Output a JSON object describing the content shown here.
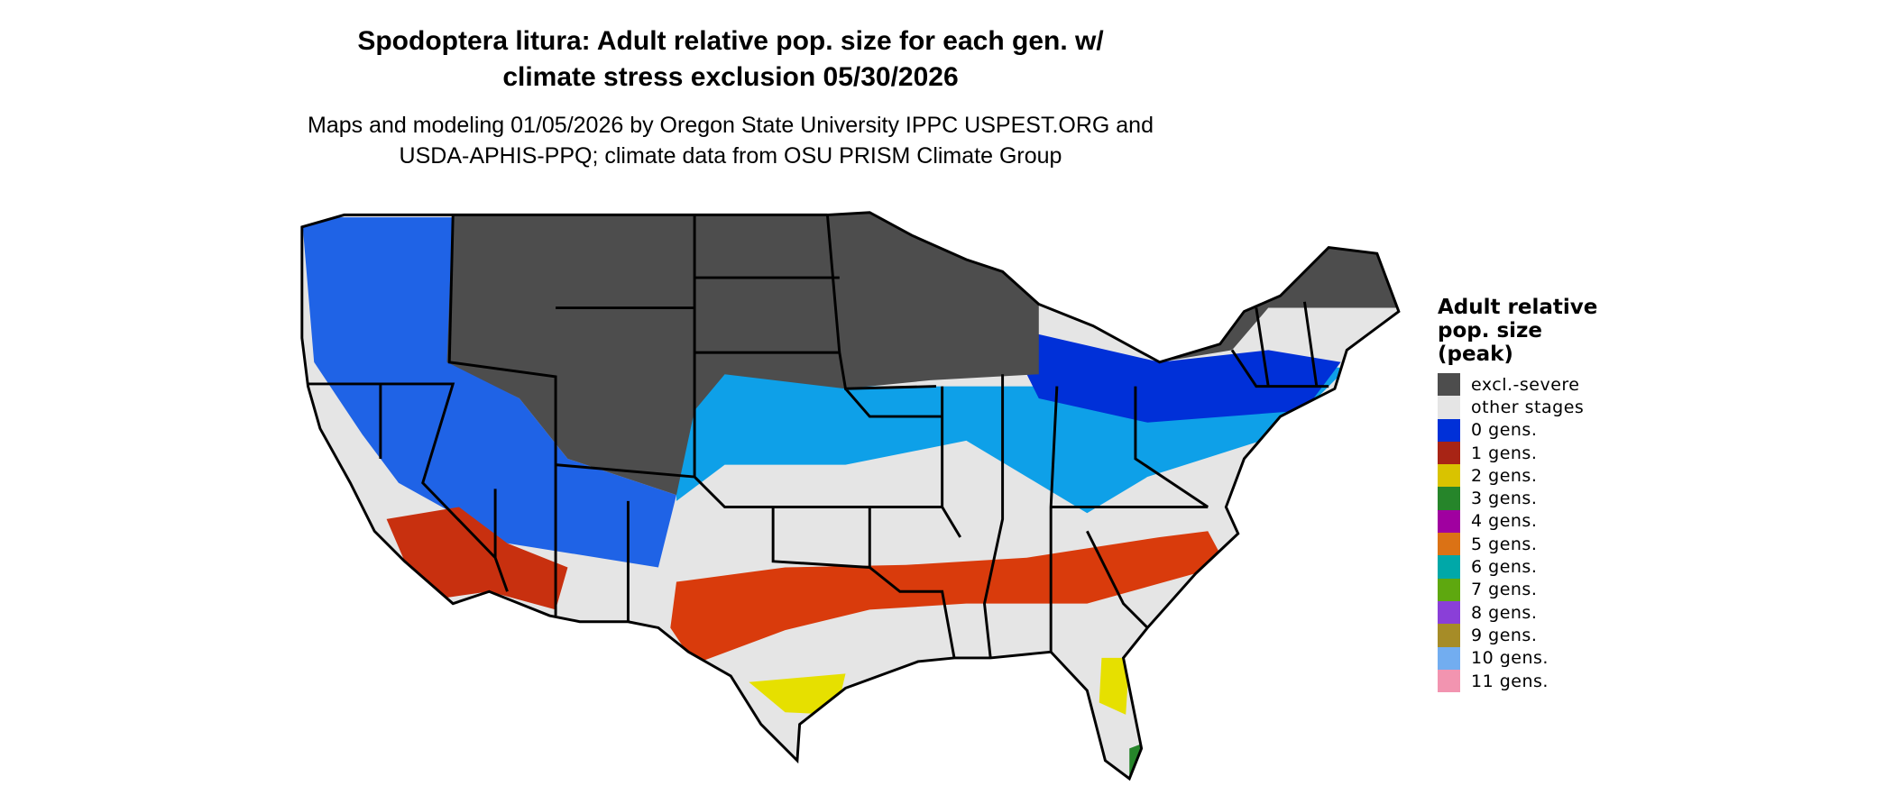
{
  "title": {
    "line1": "Spodoptera litura: Adult relative pop. size for each gen. w/",
    "line2": "climate stress exclusion 05/30/2026"
  },
  "subtitle": {
    "line1": "Maps and modeling 01/05/2026 by Oregon State University IPPC USPEST.ORG and",
    "line2": "USDA-APHIS-PPQ; climate data from OSU PRISM Climate Group"
  },
  "map": {
    "region": "contiguous United States",
    "state_borders": true
  },
  "legend": {
    "title_lines": [
      "Adult relative",
      "pop. size",
      "(peak)"
    ],
    "items": [
      {
        "label": "excl.-severe",
        "color": "#4d4d4d"
      },
      {
        "label": "other stages",
        "color": "#e5e5e5"
      },
      {
        "label": "0 gens.",
        "color": "#0030d8"
      },
      {
        "label": "1 gens.",
        "color": "#a82415"
      },
      {
        "label": "2 gens.",
        "color": "#d9c300"
      },
      {
        "label": "3 gens.",
        "color": "#26852a"
      },
      {
        "label": "4 gens.",
        "color": "#a000a0"
      },
      {
        "label": "5 gens.",
        "color": "#db7215"
      },
      {
        "label": "6 gens.",
        "color": "#00a8a8"
      },
      {
        "label": "7 gens.",
        "color": "#5ea80f"
      },
      {
        "label": "8 gens.",
        "color": "#8a3fd8"
      },
      {
        "label": "9 gens.",
        "color": "#a68c27"
      },
      {
        "label": "10 gens.",
        "color": "#72adf0"
      },
      {
        "label": "11 gens.",
        "color": "#f294b0"
      }
    ]
  }
}
